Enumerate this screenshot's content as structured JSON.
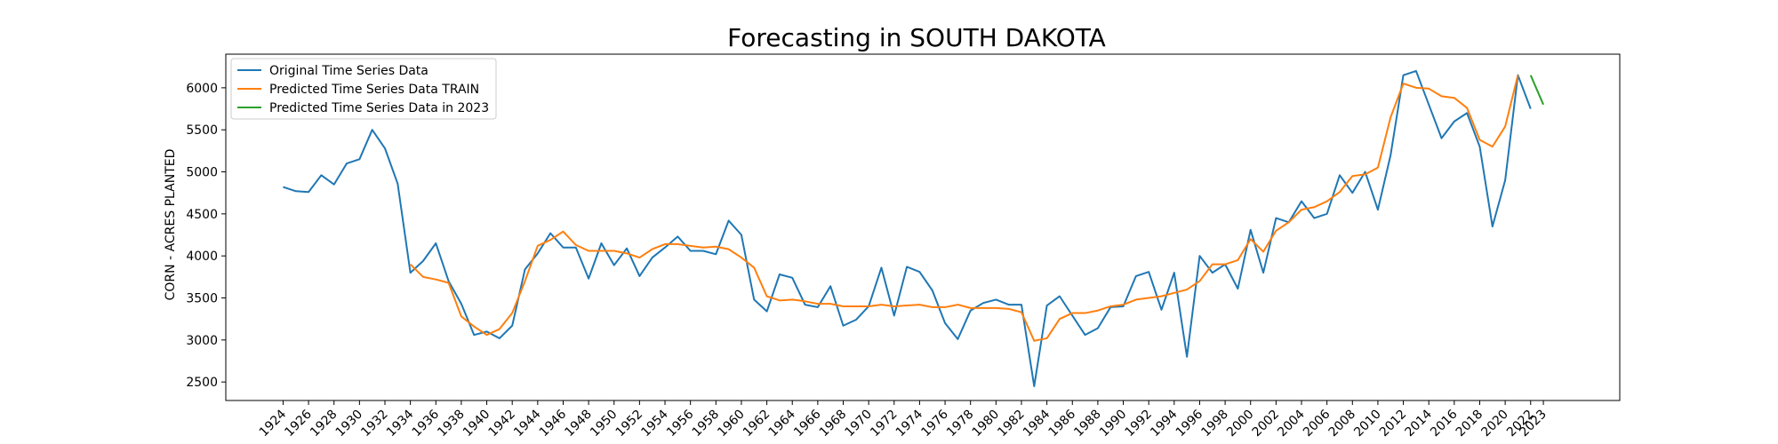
{
  "chart_data": {
    "type": "line",
    "title": "Forecasting in SOUTH DAKOTA",
    "xlabel": "",
    "ylabel": "CORN - ACRES PLANTED",
    "xlim": [
      1919.5,
      2029
    ],
    "ylim": [
      2280,
      6400
    ],
    "yticks": [
      2500,
      3000,
      3500,
      4000,
      4500,
      5000,
      5500,
      6000
    ],
    "xticks": [
      1924,
      1926,
      1928,
      1930,
      1932,
      1934,
      1936,
      1938,
      1940,
      1942,
      1944,
      1946,
      1948,
      1950,
      1952,
      1954,
      1956,
      1958,
      1960,
      1962,
      1964,
      1966,
      1968,
      1970,
      1972,
      1974,
      1976,
      1978,
      1980,
      1982,
      1984,
      1986,
      1988,
      1990,
      1992,
      1994,
      1996,
      1998,
      2000,
      2002,
      2004,
      2006,
      2008,
      2010,
      2012,
      2014,
      2016,
      2018,
      2020,
      2022,
      2023
    ],
    "grid": false,
    "legend_position": "top-left",
    "series": [
      {
        "name": "Original Time Series Data",
        "color": "#1f77b4",
        "x": [
          1924,
          1925,
          1926,
          1927,
          1928,
          1929,
          1930,
          1931,
          1932,
          1933,
          1934,
          1935,
          1936,
          1937,
          1938,
          1939,
          1940,
          1941,
          1942,
          1943,
          1944,
          1945,
          1946,
          1947,
          1948,
          1949,
          1950,
          1951,
          1952,
          1953,
          1954,
          1955,
          1956,
          1957,
          1958,
          1959,
          1960,
          1961,
          1962,
          1963,
          1964,
          1965,
          1966,
          1967,
          1968,
          1969,
          1970,
          1971,
          1972,
          1973,
          1974,
          1975,
          1976,
          1977,
          1978,
          1979,
          1980,
          1981,
          1982,
          1983,
          1984,
          1985,
          1986,
          1987,
          1988,
          1989,
          1990,
          1991,
          1992,
          1993,
          1994,
          1995,
          1996,
          1997,
          1998,
          1999,
          2000,
          2001,
          2002,
          2003,
          2004,
          2005,
          2006,
          2007,
          2008,
          2009,
          2010,
          2011,
          2012,
          2013,
          2014,
          2015,
          2016,
          2017,
          2018,
          2019,
          2020,
          2021,
          2022
        ],
        "values": [
          4820,
          4770,
          4760,
          4960,
          4850,
          5100,
          5150,
          5500,
          5280,
          4860,
          3800,
          3940,
          4150,
          3700,
          3430,
          3060,
          3100,
          3020,
          3170,
          3840,
          4030,
          4270,
          4100,
          4100,
          3730,
          4150,
          3890,
          4090,
          3760,
          3980,
          4100,
          4230,
          4060,
          4060,
          4020,
          4420,
          4250,
          3480,
          3340,
          3780,
          3740,
          3420,
          3390,
          3640,
          3170,
          3240,
          3400,
          3860,
          3290,
          3870,
          3810,
          3590,
          3200,
          3010,
          3350,
          3440,
          3480,
          3420,
          3420,
          2450,
          3410,
          3520,
          3290,
          3060,
          3140,
          3390,
          3400,
          3760,
          3810,
          3360,
          3800,
          2800,
          4000,
          3800,
          3900,
          3610,
          4310,
          3800,
          4450,
          4400,
          4650,
          4450,
          4500,
          4960,
          4750,
          5000,
          4550,
          5200,
          6150,
          6200,
          5800,
          5400,
          5600,
          5700,
          5300,
          4350,
          4900,
          6150,
          5750
        ]
      },
      {
        "name": "Predicted Time Series Data TRAIN",
        "color": "#ff7f0e",
        "x": [
          1934,
          1935,
          1936,
          1937,
          1938,
          1939,
          1940,
          1941,
          1942,
          1943,
          1944,
          1945,
          1946,
          1947,
          1948,
          1949,
          1950,
          1951,
          1952,
          1953,
          1954,
          1955,
          1956,
          1957,
          1958,
          1959,
          1960,
          1961,
          1962,
          1963,
          1964,
          1965,
          1966,
          1967,
          1968,
          1969,
          1970,
          1971,
          1972,
          1973,
          1974,
          1975,
          1976,
          1977,
          1978,
          1979,
          1980,
          1981,
          1982,
          1983,
          1984,
          1985,
          1986,
          1987,
          1988,
          1989,
          1990,
          1991,
          1992,
          1993,
          1994,
          1995,
          1996,
          1997,
          1998,
          1999,
          2000,
          2001,
          2002,
          2003,
          2004,
          2005,
          2006,
          2007,
          2008,
          2009,
          2010,
          2011,
          2012,
          2013,
          2014,
          2015,
          2016,
          2017,
          2018,
          2019,
          2020,
          2021
        ],
        "values": [
          3900,
          3750,
          3720,
          3680,
          3280,
          3160,
          3060,
          3130,
          3320,
          3700,
          4120,
          4190,
          4290,
          4130,
          4060,
          4060,
          4060,
          4030,
          3980,
          4080,
          4140,
          4140,
          4120,
          4100,
          4110,
          4080,
          3980,
          3860,
          3520,
          3470,
          3480,
          3460,
          3430,
          3430,
          3400,
          3400,
          3400,
          3420,
          3400,
          3410,
          3420,
          3390,
          3390,
          3420,
          3380,
          3380,
          3380,
          3370,
          3330,
          2990,
          3020,
          3250,
          3320,
          3320,
          3350,
          3400,
          3420,
          3480,
          3500,
          3520,
          3560,
          3600,
          3700,
          3900,
          3900,
          3950,
          4200,
          4050,
          4300,
          4400,
          4550,
          4580,
          4650,
          4760,
          4950,
          4970,
          5050,
          5650,
          6050,
          6000,
          5990,
          5900,
          5880,
          5760,
          5380,
          5300,
          5540,
          6150
        ]
      },
      {
        "name": "Predicted Time Series Data in 2023",
        "color": "#2ca02c",
        "x": [
          2022,
          2023
        ],
        "values": [
          6150,
          5800
        ]
      }
    ]
  }
}
